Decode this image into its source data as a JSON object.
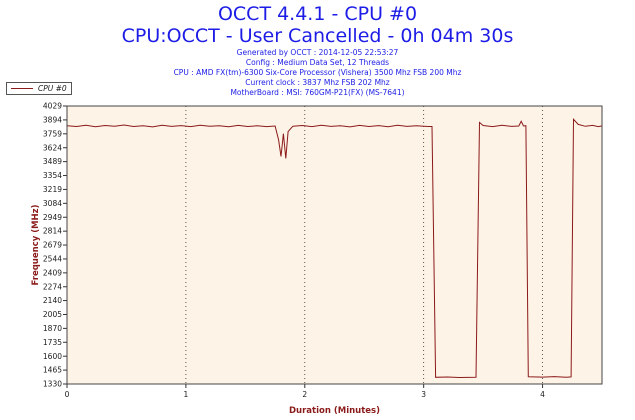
{
  "header": {
    "title_line1": "OCCT 4.4.1 - CPU #0",
    "title_line2": "CPU:OCCT - User Cancelled - 0h 04m 30s",
    "info_lines": [
      "Generated by OCCT : 2014-12-05 22:53:27",
      "Config : Medium Data Set, 12 Threads",
      "CPU : AMD FX(tm)-6300 Six-Core Processor (Vishera) 3500 Mhz FSB 200 Mhz",
      "Current clock : 3837 Mhz FSB 202 Mhz",
      "MotherBoard : MSI: 760GM-P21(FX) (MS-7641)"
    ]
  },
  "colors": {
    "title": "#1c1ce6",
    "series": "#8b1a1a",
    "plot_background": "#fdf3e6",
    "axis_title": "#8b1a1a"
  },
  "chart_data": {
    "type": "line",
    "xlabel": "Duration (Minutes)",
    "ylabel": "Frequency (MHz)",
    "xlim": [
      0,
      4.5
    ],
    "ylim": [
      1330,
      4029
    ],
    "x_ticks": [
      0,
      1,
      2,
      3,
      4
    ],
    "y_ticks": [
      1330,
      1465,
      1600,
      1735,
      1870,
      2005,
      2140,
      2274,
      2409,
      2544,
      2679,
      2814,
      2949,
      3084,
      3219,
      3354,
      3489,
      3624,
      3759,
      3894,
      4029
    ],
    "grid": "vertical dotted at x ticks",
    "legend_position": "top-left",
    "series": [
      {
        "name": "CPU #0",
        "points": [
          [
            0,
            3837
          ],
          [
            0.08,
            3830
          ],
          [
            0.16,
            3842
          ],
          [
            0.24,
            3828
          ],
          [
            0.32,
            3840
          ],
          [
            0.4,
            3833
          ],
          [
            0.48,
            3845
          ],
          [
            0.56,
            3830
          ],
          [
            0.64,
            3838
          ],
          [
            0.72,
            3826
          ],
          [
            0.8,
            3842
          ],
          [
            0.88,
            3831
          ],
          [
            0.96,
            3839
          ],
          [
            1.04,
            3829
          ],
          [
            1.12,
            3843
          ],
          [
            1.2,
            3832
          ],
          [
            1.28,
            3838
          ],
          [
            1.36,
            3827
          ],
          [
            1.44,
            3841
          ],
          [
            1.52,
            3830
          ],
          [
            1.6,
            3837
          ],
          [
            1.68,
            3829
          ],
          [
            1.75,
            3835
          ],
          [
            1.78,
            3700
          ],
          [
            1.8,
            3540
          ],
          [
            1.82,
            3760
          ],
          [
            1.84,
            3520
          ],
          [
            1.86,
            3780
          ],
          [
            1.9,
            3833
          ],
          [
            1.98,
            3840
          ],
          [
            2.06,
            3829
          ],
          [
            2.14,
            3843
          ],
          [
            2.22,
            3831
          ],
          [
            2.3,
            3838
          ],
          [
            2.38,
            3826
          ],
          [
            2.46,
            3841
          ],
          [
            2.54,
            3830
          ],
          [
            2.62,
            3839
          ],
          [
            2.7,
            3828
          ],
          [
            2.78,
            3842
          ],
          [
            2.86,
            3831
          ],
          [
            2.94,
            3837
          ],
          [
            3.0,
            3833
          ],
          [
            3.04,
            3830
          ],
          [
            3.07,
            3830
          ],
          [
            3.1,
            1395
          ],
          [
            3.2,
            1398
          ],
          [
            3.3,
            1393
          ],
          [
            3.44,
            1396
          ],
          [
            3.47,
            3870
          ],
          [
            3.5,
            3840
          ],
          [
            3.58,
            3829
          ],
          [
            3.66,
            3843
          ],
          [
            3.74,
            3831
          ],
          [
            3.8,
            3835
          ],
          [
            3.82,
            3880
          ],
          [
            3.84,
            3835
          ],
          [
            3.86,
            3838
          ],
          [
            3.88,
            1400
          ],
          [
            4.0,
            1397
          ],
          [
            4.1,
            1402
          ],
          [
            4.2,
            1396
          ],
          [
            4.24,
            1399
          ],
          [
            4.26,
            3900
          ],
          [
            4.3,
            3850
          ],
          [
            4.36,
            3832
          ],
          [
            4.42,
            3841
          ],
          [
            4.47,
            3829
          ],
          [
            4.5,
            3836
          ]
        ]
      }
    ]
  }
}
